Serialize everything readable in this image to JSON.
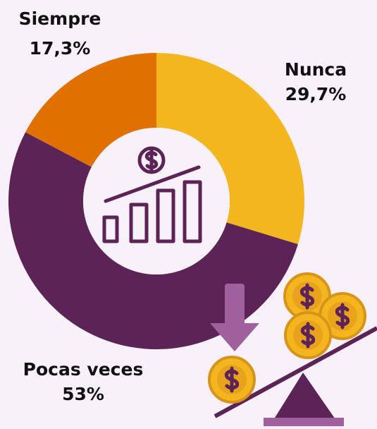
{
  "chart_data": {
    "type": "donut",
    "categories": [
      "Nunca",
      "Pocas veces",
      "Siempre"
    ],
    "values": [
      29.7,
      53,
      17.3
    ],
    "value_labels": [
      "29,7%",
      "53%",
      "17,3%"
    ],
    "colors": [
      "#f3b61f",
      "#5c2456",
      "#e07000"
    ]
  }
}
